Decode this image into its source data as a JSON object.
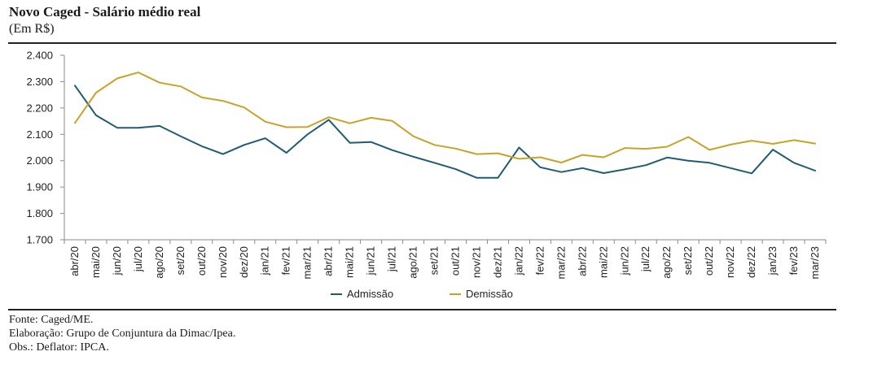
{
  "header": {
    "title": "Novo Caged -  Salário médio real",
    "subtitle": "(Em R$)"
  },
  "chart_data": {
    "type": "line",
    "title": "Novo Caged -  Salário médio real",
    "ylabel": "(Em R$)",
    "xlabel": "",
    "ylim": [
      1700,
      2400
    ],
    "yticks": [
      "1.700",
      "1.800",
      "1.900",
      "2.000",
      "2.100",
      "2.200",
      "2.300",
      "2.400"
    ],
    "grid": false,
    "legend_position": "bottom",
    "categories": [
      "abr/20",
      "mai/20",
      "jun/20",
      "jul/20",
      "ago/20",
      "set/20",
      "out/20",
      "nov/20",
      "dez/20",
      "jan/21",
      "fev/21",
      "mar/21",
      "abr/21",
      "mai/21",
      "jun/21",
      "jul/21",
      "ago/21",
      "set/21",
      "out/21",
      "nov/21",
      "dez/21",
      "jan/22",
      "fev/22",
      "mar/22",
      "abr/22",
      "mai/22",
      "jun/22",
      "jul/22",
      "ago/22",
      "set/22",
      "out/22",
      "nov/22",
      "dez/22",
      "jan/23",
      "fev/23",
      "mar/23"
    ],
    "series": [
      {
        "name": "Admissão",
        "color": "#1f5c73",
        "values": [
          2285,
          2172,
          2125,
          2125,
          2132,
          2093,
          2055,
          2025,
          2060,
          2085,
          2030,
          2100,
          2155,
          2068,
          2071,
          2040,
          2015,
          1992,
          1968,
          1935,
          1935,
          2050,
          1975,
          1957,
          1972,
          1953,
          1967,
          1983,
          2012,
          2000,
          1992,
          1972,
          1952,
          2042,
          1992,
          1962
        ]
      },
      {
        "name": "Demissão",
        "color": "#c9a227",
        "values": [
          2143,
          2258,
          2312,
          2335,
          2296,
          2282,
          2240,
          2227,
          2202,
          2148,
          2127,
          2128,
          2165,
          2142,
          2163,
          2151,
          2093,
          2060,
          2046,
          2025,
          2028,
          2007,
          2013,
          1993,
          2022,
          2013,
          2048,
          2045,
          2053,
          2090,
          2041,
          2061,
          2076,
          2064,
          2078,
          2065
        ]
      }
    ]
  },
  "footer": {
    "source": "Fonte: Caged/ME.",
    "elaboration": "Elaboração: Grupo de Conjuntura da Dimac/Ipea.",
    "note": "Obs.: Deflator: IPCA."
  }
}
